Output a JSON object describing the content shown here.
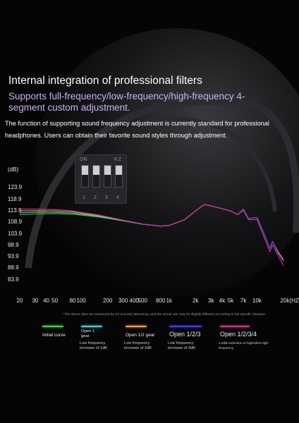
{
  "header": {
    "title": "Internal integration of professional filters",
    "subtitle": "Supports full-frequency/low-frequency/high-frequency 4-segment custom adjustment.",
    "description": "The function of supporting sound frequency adjustment is currently standard for professional headphones. Users can obtain their favorite sound styles through adjustment."
  },
  "switch_panel": {
    "on_label": "ON",
    "brand_label": "KZ",
    "numbers": [
      "1",
      "2",
      "3",
      "4"
    ]
  },
  "note": "* The above data are measured by KZ acoustic laboratory, and the actual use may be slightly different according to the specific situation.",
  "chart_data": {
    "type": "line",
    "title": "",
    "xlabel": "(HZ)",
    "ylabel": "(dB)",
    "x_scale": "log",
    "xlim": [
      20,
      20000
    ],
    "ylim": [
      78.9,
      128.9
    ],
    "y_ticks": [
      "123.9",
      "118.9",
      "113.9",
      "108.9",
      "103.9",
      "98.9",
      "93.9",
      "88.9",
      "83.9"
    ],
    "x_ticks": [
      "20",
      "30",
      "40",
      "50",
      "80",
      "100",
      "200",
      "300",
      "400",
      "500",
      "800",
      "1k",
      "2k",
      "3k",
      "4k",
      "5k",
      "7k",
      "10k",
      "20k(HZ)"
    ],
    "x_tick_values": [
      20,
      30,
      40,
      50,
      80,
      100,
      200,
      300,
      400,
      500,
      800,
      1000,
      2000,
      3000,
      4000,
      5000,
      7000,
      10000,
      20000
    ],
    "series": [
      {
        "name": "Initial curve",
        "color": "#3cd94a",
        "x": [
          20,
          30,
          50,
          80,
          100,
          150,
          200,
          300,
          500,
          800,
          1000,
          1500,
          2000,
          2500,
          3000,
          4000,
          5000,
          6000,
          7000,
          8000,
          10000,
          12000,
          14000,
          15000,
          17000,
          20000
        ],
        "y": [
          112.2,
          112.5,
          112.6,
          112.4,
          112.0,
          111.3,
          110.6,
          109.5,
          108.0,
          107.2,
          107.5,
          110.0,
          113.8,
          116.6,
          116.0,
          114.8,
          113.8,
          112.2,
          114.5,
          110.5,
          111.0,
          104.0,
          97.5,
          100.5,
          96.5,
          92.5
        ]
      },
      {
        "name": "Open 1 gear",
        "color": "#3ad7d7",
        "x": [
          20,
          30,
          50,
          80,
          100,
          150,
          200,
          300,
          500,
          800,
          1000,
          1500,
          2000,
          2500,
          3000,
          4000,
          5000,
          6000,
          7000,
          8000,
          10000,
          12000,
          14000,
          15000,
          17000,
          20000
        ],
        "y": [
          113.0,
          113.2,
          113.2,
          112.9,
          112.4,
          111.6,
          110.8,
          109.6,
          108.0,
          107.2,
          107.5,
          110.0,
          113.8,
          116.6,
          116.0,
          114.8,
          113.8,
          112.2,
          114.5,
          110.5,
          111.0,
          104.0,
          97.5,
          100.5,
          96.5,
          92.5
        ]
      },
      {
        "name": "Open 1/2 gear",
        "color": "#ff9f43",
        "x": [
          20,
          30,
          50,
          80,
          100,
          150,
          200,
          300,
          500,
          800,
          1000,
          1500,
          2000,
          2500,
          3000,
          4000,
          5000,
          6000,
          7000,
          8000,
          10000,
          12000,
          14000,
          15000,
          17000,
          20000
        ],
        "y": [
          113.8,
          113.9,
          113.8,
          113.4,
          112.8,
          111.9,
          111.0,
          109.7,
          108.1,
          107.2,
          107.5,
          110.0,
          113.8,
          116.6,
          116.0,
          114.8,
          113.8,
          112.2,
          114.5,
          110.5,
          111.0,
          104.0,
          97.5,
          100.5,
          96.5,
          92.5
        ]
      },
      {
        "name": "Open 1/2/3",
        "color": "#3f3cf0",
        "x": [
          20,
          30,
          50,
          80,
          100,
          150,
          200,
          300,
          500,
          800,
          1000,
          1500,
          2000,
          2500,
          3000,
          4000,
          5000,
          6000,
          7000,
          8000,
          10000,
          12000,
          14000,
          15000,
          17000,
          20000
        ],
        "y": [
          114.6,
          114.6,
          114.4,
          113.8,
          113.2,
          112.2,
          111.2,
          109.8,
          108.1,
          107.2,
          107.5,
          110.0,
          113.8,
          116.6,
          116.0,
          114.8,
          113.8,
          112.2,
          114.5,
          110.5,
          111.0,
          104.0,
          97.5,
          100.5,
          96.0,
          91.5
        ]
      },
      {
        "name": "Open 1/2/3/4",
        "color": "#e0308a",
        "x": [
          20,
          30,
          50,
          80,
          100,
          150,
          200,
          300,
          500,
          800,
          1000,
          1500,
          2000,
          2500,
          3000,
          4000,
          5000,
          6000,
          7000,
          8000,
          10000,
          12000,
          14000,
          15000,
          17000,
          20000
        ],
        "y": [
          114.6,
          114.6,
          114.4,
          113.8,
          113.2,
          112.2,
          111.2,
          109.8,
          108.1,
          107.2,
          107.5,
          110.0,
          113.8,
          116.6,
          116.0,
          114.8,
          113.8,
          112.2,
          114.0,
          110.0,
          110.0,
          102.5,
          96.0,
          99.0,
          95.0,
          90.0
        ]
      }
    ],
    "legend": [
      {
        "label": "Initial curve",
        "desc": "",
        "color": "#3cd94a"
      },
      {
        "label": "Open 1 gear",
        "desc": "Low frequency increase of 1dB",
        "color": "#3ad7d7"
      },
      {
        "label": "Open 1/2 gear",
        "desc": "Low frequency increase of 2dB",
        "color": "#ff9f43"
      },
      {
        "label": "Open 1/2/3",
        "desc": "Low frequency increase of 3dB",
        "color": "#3f3cf0"
      },
      {
        "label": "Open 1/2/3/4",
        "desc": "1.5dB reduction in high/ultra high frequency",
        "color": "#e0308a"
      }
    ],
    "grid": false,
    "legend_position": "bottom"
  }
}
